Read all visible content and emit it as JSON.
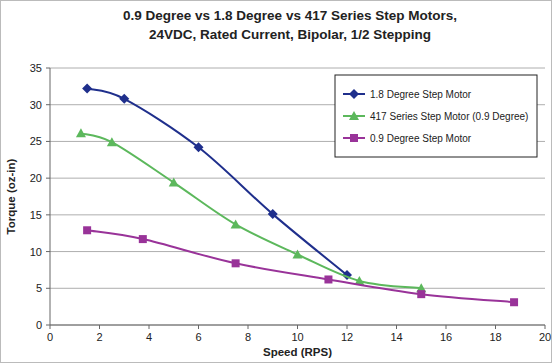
{
  "chart_data": {
    "type": "line",
    "title": "0.9 Degree vs 1.8 Degree vs 417 Series Step Motors,\n24VDC, Rated Current, Bipolar, 1/2 Stepping",
    "x_label": "Speed (RPS)",
    "y_label": "Torque (oz-in)",
    "xlim": [
      0,
      20
    ],
    "xticks": [
      0,
      2,
      4,
      6,
      8,
      10,
      12,
      14,
      16,
      18,
      20
    ],
    "ylim": [
      0,
      35
    ],
    "yticks": [
      0,
      5,
      10,
      15,
      20,
      25,
      30,
      35
    ],
    "grid": true,
    "legend": "upper right",
    "series": [
      {
        "name": "1.8 Degree Step Motor",
        "color": "#1f2f8c",
        "marker": "diamond",
        "x": [
          1.5,
          3,
          6,
          9,
          12
        ],
        "values": [
          32.2,
          30.8,
          24.2,
          15.1,
          6.8
        ]
      },
      {
        "name": "417 Series Step Motor (0.9 Degree)",
        "color": "#5cb85c",
        "marker": "triangle",
        "x": [
          1.25,
          2.5,
          5,
          7.5,
          10,
          12.5,
          15
        ],
        "values": [
          26.1,
          24.9,
          19.4,
          13.7,
          9.6,
          6.0,
          5.0
        ]
      },
      {
        "name": "0.9 Degree Step Motor",
        "color": "#993399",
        "marker": "square",
        "x": [
          1.5,
          3.75,
          7.5,
          11.25,
          15,
          18.75
        ],
        "values": [
          12.9,
          11.7,
          8.4,
          6.2,
          4.2,
          3.1
        ]
      }
    ]
  }
}
